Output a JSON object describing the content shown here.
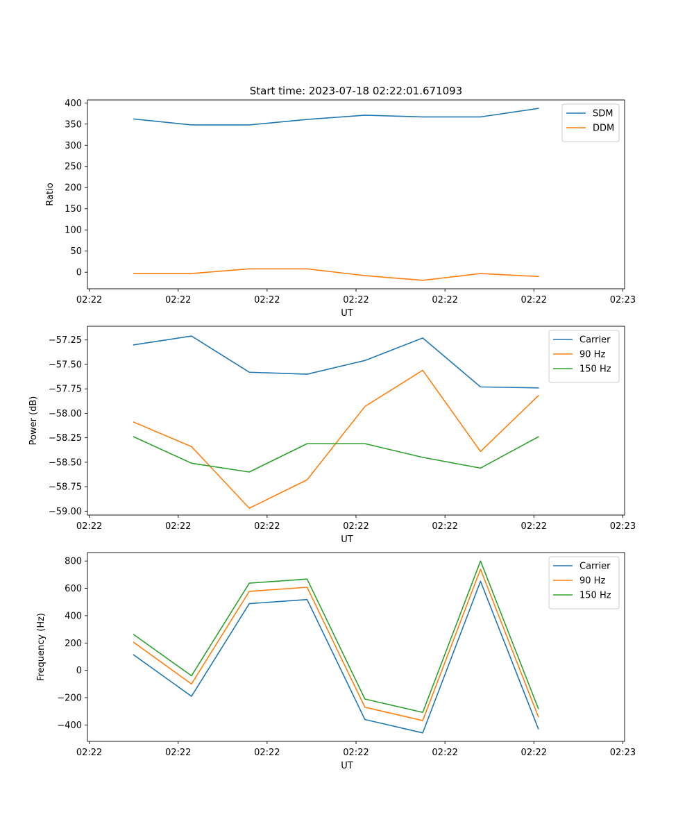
{
  "figure_title": "Start time: 2023-07-18 02:22:01.671093",
  "colors": {
    "series_1": "#1f77b4",
    "series_2": "#ff7f0e",
    "series_3": "#2ca02c",
    "axes": "#000000",
    "legend_border": "#cccccc"
  },
  "chart_data": [
    {
      "type": "line",
      "title": "Start time: 2023-07-18 02:22:01.671093",
      "xlabel": "UT",
      "ylabel": "Ratio",
      "x_ticks": [
        0,
        1,
        2,
        3,
        4,
        5,
        6
      ],
      "x_tick_labels": [
        "02:22",
        "02:22",
        "02:22",
        "02:22",
        "02:22",
        "02:22",
        "02:23"
      ],
      "xlim": [
        -0.02,
        6.02
      ],
      "ylim": [
        -39,
        407
      ],
      "y_ticks": [
        0,
        50,
        100,
        150,
        200,
        250,
        300,
        350,
        400
      ],
      "y_tick_labels": [
        "0",
        "50",
        "100",
        "150",
        "200",
        "250",
        "300",
        "350",
        "400"
      ],
      "x": [
        0.5,
        1.15,
        1.8,
        2.45,
        3.1,
        3.75,
        4.4,
        5.05
      ],
      "series": [
        {
          "name": "SDM",
          "values": [
            362,
            348,
            348,
            361,
            371,
            367,
            367,
            387
          ]
        },
        {
          "name": "DDM",
          "values": [
            -3,
            -3,
            8,
            8,
            -8,
            -19,
            -3,
            -10
          ]
        }
      ],
      "legend_position": "top-right"
    },
    {
      "type": "line",
      "title": "",
      "xlabel": "UT",
      "ylabel": "Power (dB)",
      "x_ticks": [
        0,
        1,
        2,
        3,
        4,
        5,
        6
      ],
      "x_tick_labels": [
        "02:22",
        "02:22",
        "02:22",
        "02:22",
        "02:22",
        "02:22",
        "02:23"
      ],
      "xlim": [
        -0.02,
        6.02
      ],
      "ylim": [
        -59.04,
        -57.11
      ],
      "y_ticks": [
        -59.0,
        -58.75,
        -58.5,
        -58.25,
        -58.0,
        -57.75,
        -57.5,
        -57.25
      ],
      "y_tick_labels": [
        "−59.00",
        "−58.75",
        "−58.50",
        "−58.25",
        "−58.00",
        "−57.75",
        "−57.50",
        "−57.25"
      ],
      "x": [
        0.5,
        1.15,
        1.8,
        2.45,
        3.1,
        3.75,
        4.4,
        5.05
      ],
      "series": [
        {
          "name": "Carrier",
          "values": [
            -57.3,
            -57.21,
            -57.58,
            -57.6,
            -57.46,
            -57.23,
            -57.73,
            -57.74
          ]
        },
        {
          "name": "90 Hz",
          "values": [
            -58.09,
            -58.34,
            -58.97,
            -58.68,
            -57.93,
            -57.56,
            -58.39,
            -57.82
          ]
        },
        {
          "name": "150 Hz",
          "values": [
            -58.24,
            -58.51,
            -58.6,
            -58.31,
            -58.31,
            -58.45,
            -58.56,
            -58.24
          ]
        }
      ],
      "legend_position": "top-right"
    },
    {
      "type": "line",
      "title": "",
      "xlabel": "UT",
      "ylabel": "Frequency (Hz)",
      "x_ticks": [
        0,
        1,
        2,
        3,
        4,
        5,
        6
      ],
      "x_tick_labels": [
        "02:22",
        "02:22",
        "02:22",
        "02:22",
        "02:22",
        "02:22",
        "02:23"
      ],
      "xlim": [
        -0.02,
        6.02
      ],
      "ylim": [
        -520,
        862
      ],
      "y_ticks": [
        -400,
        -200,
        0,
        200,
        400,
        600,
        800
      ],
      "y_tick_labels": [
        "−400",
        "−200",
        "0",
        "200",
        "400",
        "600",
        "800"
      ],
      "x": [
        0.5,
        1.15,
        1.8,
        2.45,
        3.1,
        3.75,
        4.4,
        5.05
      ],
      "series": [
        {
          "name": "Carrier",
          "values": [
            113,
            -190,
            488,
            518,
            -360,
            -458,
            652,
            -428
          ]
        },
        {
          "name": "90 Hz",
          "values": [
            205,
            -100,
            578,
            608,
            -270,
            -368,
            740,
            -340
          ]
        },
        {
          "name": "150 Hz",
          "values": [
            262,
            -40,
            638,
            668,
            -210,
            -308,
            800,
            -280
          ]
        }
      ],
      "legend_position": "top-right"
    }
  ]
}
